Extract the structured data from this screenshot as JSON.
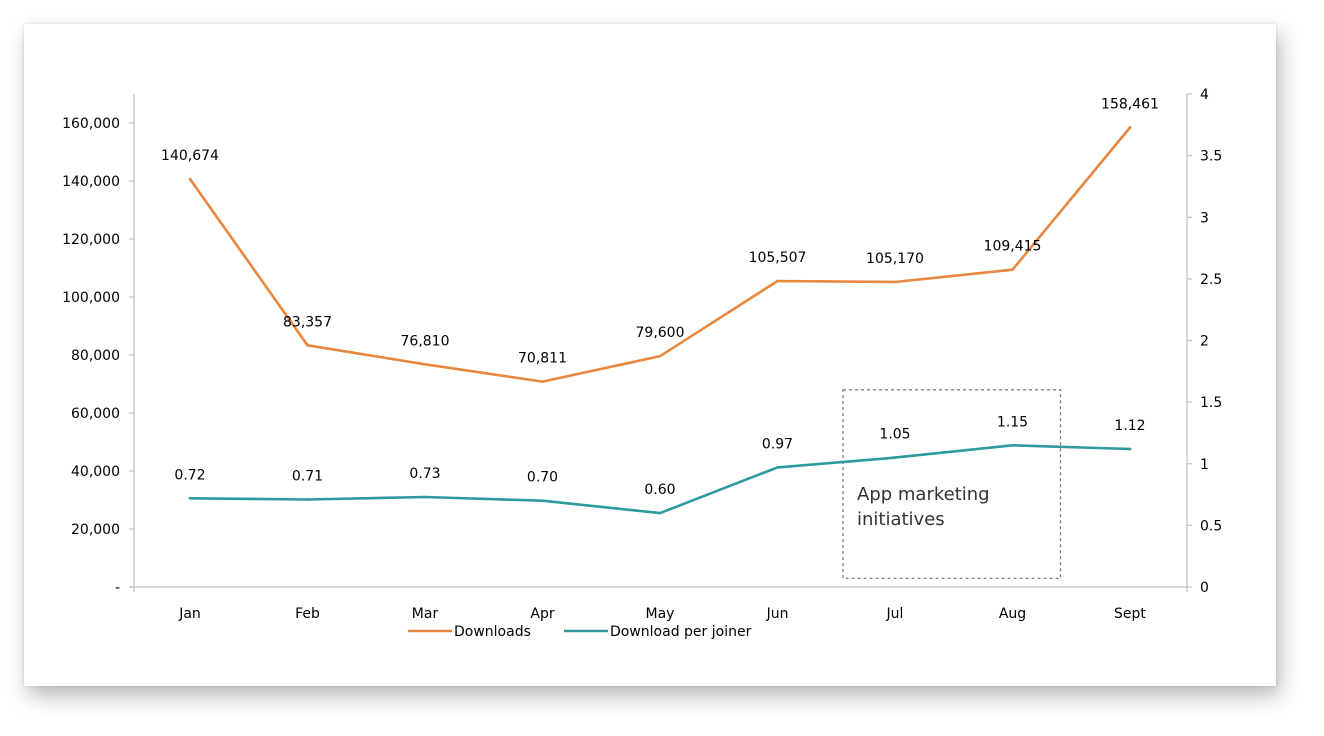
{
  "chart_data": {
    "type": "line",
    "categories": [
      "Jan",
      "Feb",
      "Mar",
      "Apr",
      "May",
      "Jun",
      "Jul",
      "Aug",
      "Sept"
    ],
    "series": [
      {
        "name": "Downloads",
        "axis": "left",
        "color": "#E8873E",
        "values": [
          140674,
          83357,
          76810,
          70811,
          79600,
          105507,
          105170,
          109415,
          158461
        ],
        "labels": [
          "140,674",
          "83,357",
          "76,810",
          "70,811",
          "79,600",
          "105,507",
          "105,170",
          "109,415",
          "158,461"
        ]
      },
      {
        "name": "Download per joiner",
        "axis": "right",
        "color": "#2E9AA0",
        "values": [
          0.72,
          0.71,
          0.73,
          0.7,
          0.6,
          0.97,
          1.05,
          1.15,
          1.12
        ],
        "labels": [
          "0.72",
          "0.71",
          "0.73",
          "0.70",
          "0.60",
          "0.97",
          "1.05",
          "1.15",
          "1.12"
        ]
      }
    ],
    "y_left": {
      "ylim": [
        0,
        170000
      ],
      "ticks": [
        0,
        20000,
        40000,
        60000,
        80000,
        100000,
        120000,
        140000,
        160000
      ],
      "tick_labels": [
        "-",
        "20,000",
        "40,000",
        "60,000",
        "80,000",
        "100,000",
        "120,000",
        "140,000",
        "160,000"
      ]
    },
    "y_right": {
      "ylim": [
        0,
        4
      ],
      "ticks": [
        0,
        0.5,
        1,
        1.5,
        2,
        2.5,
        3,
        3.5,
        4
      ],
      "tick_labels": [
        "0",
        "0.5",
        "1",
        "1.5",
        "2",
        "2.5",
        "3",
        "3.5",
        "4"
      ]
    },
    "grid": false,
    "legend_position": "bottom",
    "annotation": {
      "text_lines": [
        "App marketing",
        "initiatives"
      ],
      "spans_categories": [
        "Jul",
        "Aug"
      ],
      "style": "dashed-box"
    },
    "title": "",
    "xlabel": "",
    "ylabel": ""
  }
}
